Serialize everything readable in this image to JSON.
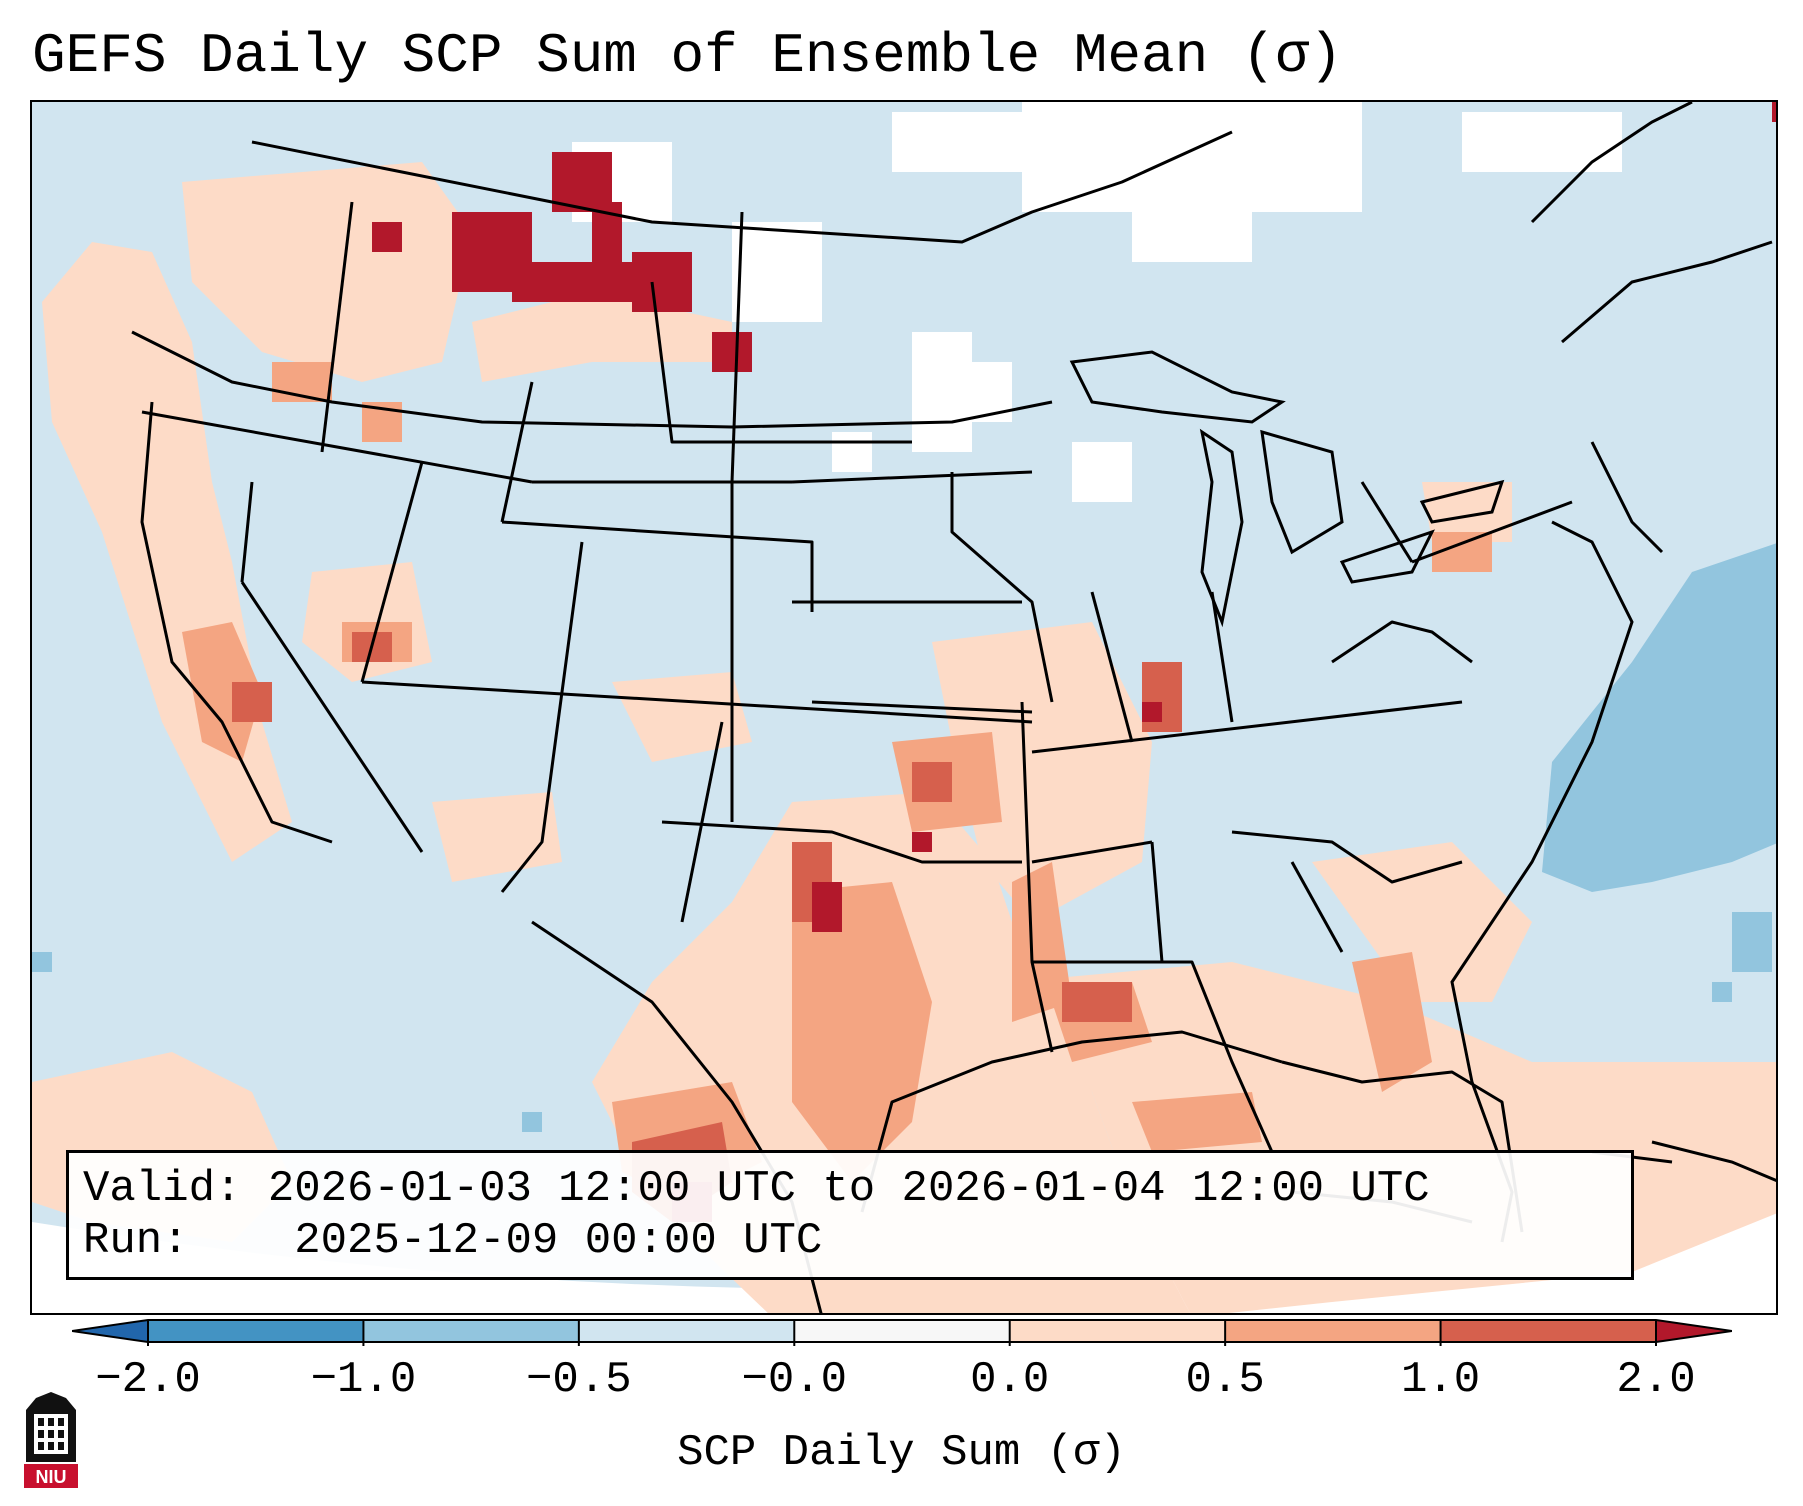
{
  "title": "GEFS Daily SCP Sum of Ensemble Mean (σ)",
  "info": {
    "valid_label": "Valid:",
    "valid_value": "2026-01-03 12:00 UTC to 2026-01-04 12:00 UTC",
    "run_label": "Run:",
    "run_value": "2025-12-09 00:00 UTC"
  },
  "colorbar": {
    "label": "SCP Daily Sum (σ)",
    "ticks": [
      "−2.0",
      "−1.0",
      "−0.5",
      "−0.0",
      "0.0",
      "0.5",
      "1.0",
      "2.0"
    ],
    "colors": [
      "#4393c3",
      "#92c5de",
      "#d1e5f0",
      "#f7f7f7",
      "#fddbc7",
      "#f4a582",
      "#d6604d"
    ],
    "extend_low_color": "#2166ac",
    "extend_high_color": "#b2182b"
  },
  "logo": {
    "text": "NIU"
  }
}
